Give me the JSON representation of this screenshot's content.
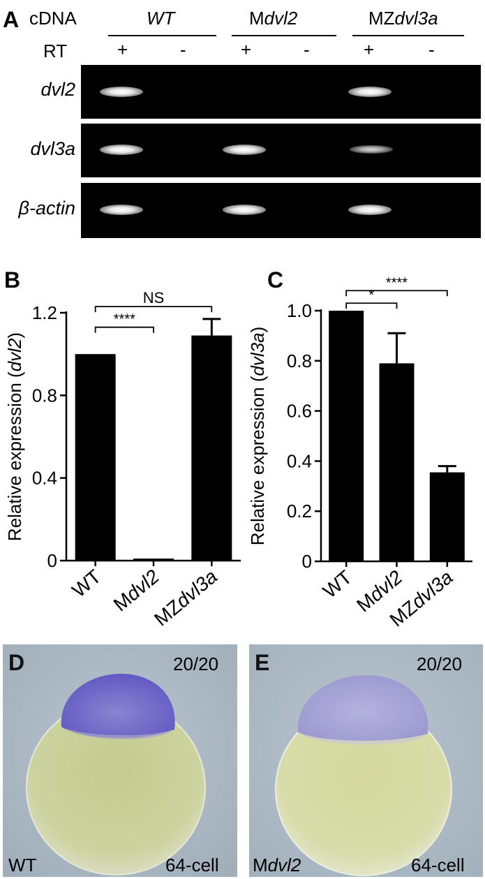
{
  "panelA": {
    "label": "A",
    "cdna_label": "cDNA",
    "rt_label": "RT",
    "groups": [
      {
        "pre": "",
        "ital": "WT"
      },
      {
        "pre": "M",
        "ital": "dvl2"
      },
      {
        "pre": "MZ",
        "ital": "dvl3a"
      }
    ],
    "rt_signs": [
      "+",
      "-",
      "+",
      "-",
      "+",
      "-"
    ],
    "gels": [
      {
        "label": "dvl2",
        "bands": [
          1,
          0,
          0,
          0,
          1,
          0
        ]
      },
      {
        "label": "dvl3a",
        "bands": [
          1,
          0,
          1,
          0,
          0.6,
          0
        ]
      },
      {
        "label": "β-actin",
        "bands": [
          1,
          0,
          1,
          0,
          1,
          0
        ]
      }
    ]
  },
  "chart_data": [
    {
      "panel": "B",
      "type": "bar",
      "categories": [
        {
          "pre": "",
          "ital": "WT"
        },
        {
          "pre": "M",
          "ital": "dvl2"
        },
        {
          "pre": "MZ",
          "ital": "dvl3a"
        }
      ],
      "values": [
        1.0,
        0.01,
        1.09
      ],
      "errors": [
        0,
        0,
        0.08
      ],
      "ylabel": {
        "pre": "Relative expression (",
        "ital": "dvl2",
        "post": ")"
      },
      "yticks": [
        "0",
        "0.4",
        "0.8",
        "1.2"
      ],
      "ytick_values": [
        0,
        0.4,
        0.8,
        1.2
      ],
      "ylim": [
        0,
        1.2
      ],
      "significance": [
        {
          "from": 0,
          "to": 2,
          "label": "NS",
          "level": 1.23
        },
        {
          "from": 0,
          "to": 1,
          "label": "****",
          "level": 1.13
        }
      ]
    },
    {
      "panel": "C",
      "type": "bar",
      "categories": [
        {
          "pre": "",
          "ital": "WT"
        },
        {
          "pre": "M",
          "ital": "dvl2"
        },
        {
          "pre": "MZ",
          "ital": "dvl3a"
        }
      ],
      "values": [
        1.0,
        0.79,
        0.355
      ],
      "errors": [
        0,
        0.12,
        0.025
      ],
      "ylabel": {
        "pre": "Relative expression (",
        "ital": "dvl3a",
        "post": ")"
      },
      "yticks": [
        "0",
        "0.2",
        "0.4",
        "0.6",
        "0.8",
        "1.0"
      ],
      "ytick_values": [
        0,
        0.2,
        0.4,
        0.6,
        0.8,
        1.0
      ],
      "ylim": [
        0,
        1.0
      ],
      "significance": [
        {
          "from": 0,
          "to": 2,
          "label": "****",
          "level": 1.08
        },
        {
          "from": 0,
          "to": 1,
          "label": "*",
          "level": 1.03
        }
      ]
    }
  ],
  "panelD": {
    "label": "D",
    "count": "20/20",
    "genotype_pre": "",
    "genotype_ital": "WT",
    "stage": "64-cell"
  },
  "panelE": {
    "label": "E",
    "count": "20/20",
    "genotype_pre": "M",
    "genotype_ital": "dvl2",
    "stage": "64-cell"
  },
  "colors": {
    "stain": "#6d63c8",
    "yolk": "#ccd39b",
    "background_photo": "#a8b6c2"
  }
}
